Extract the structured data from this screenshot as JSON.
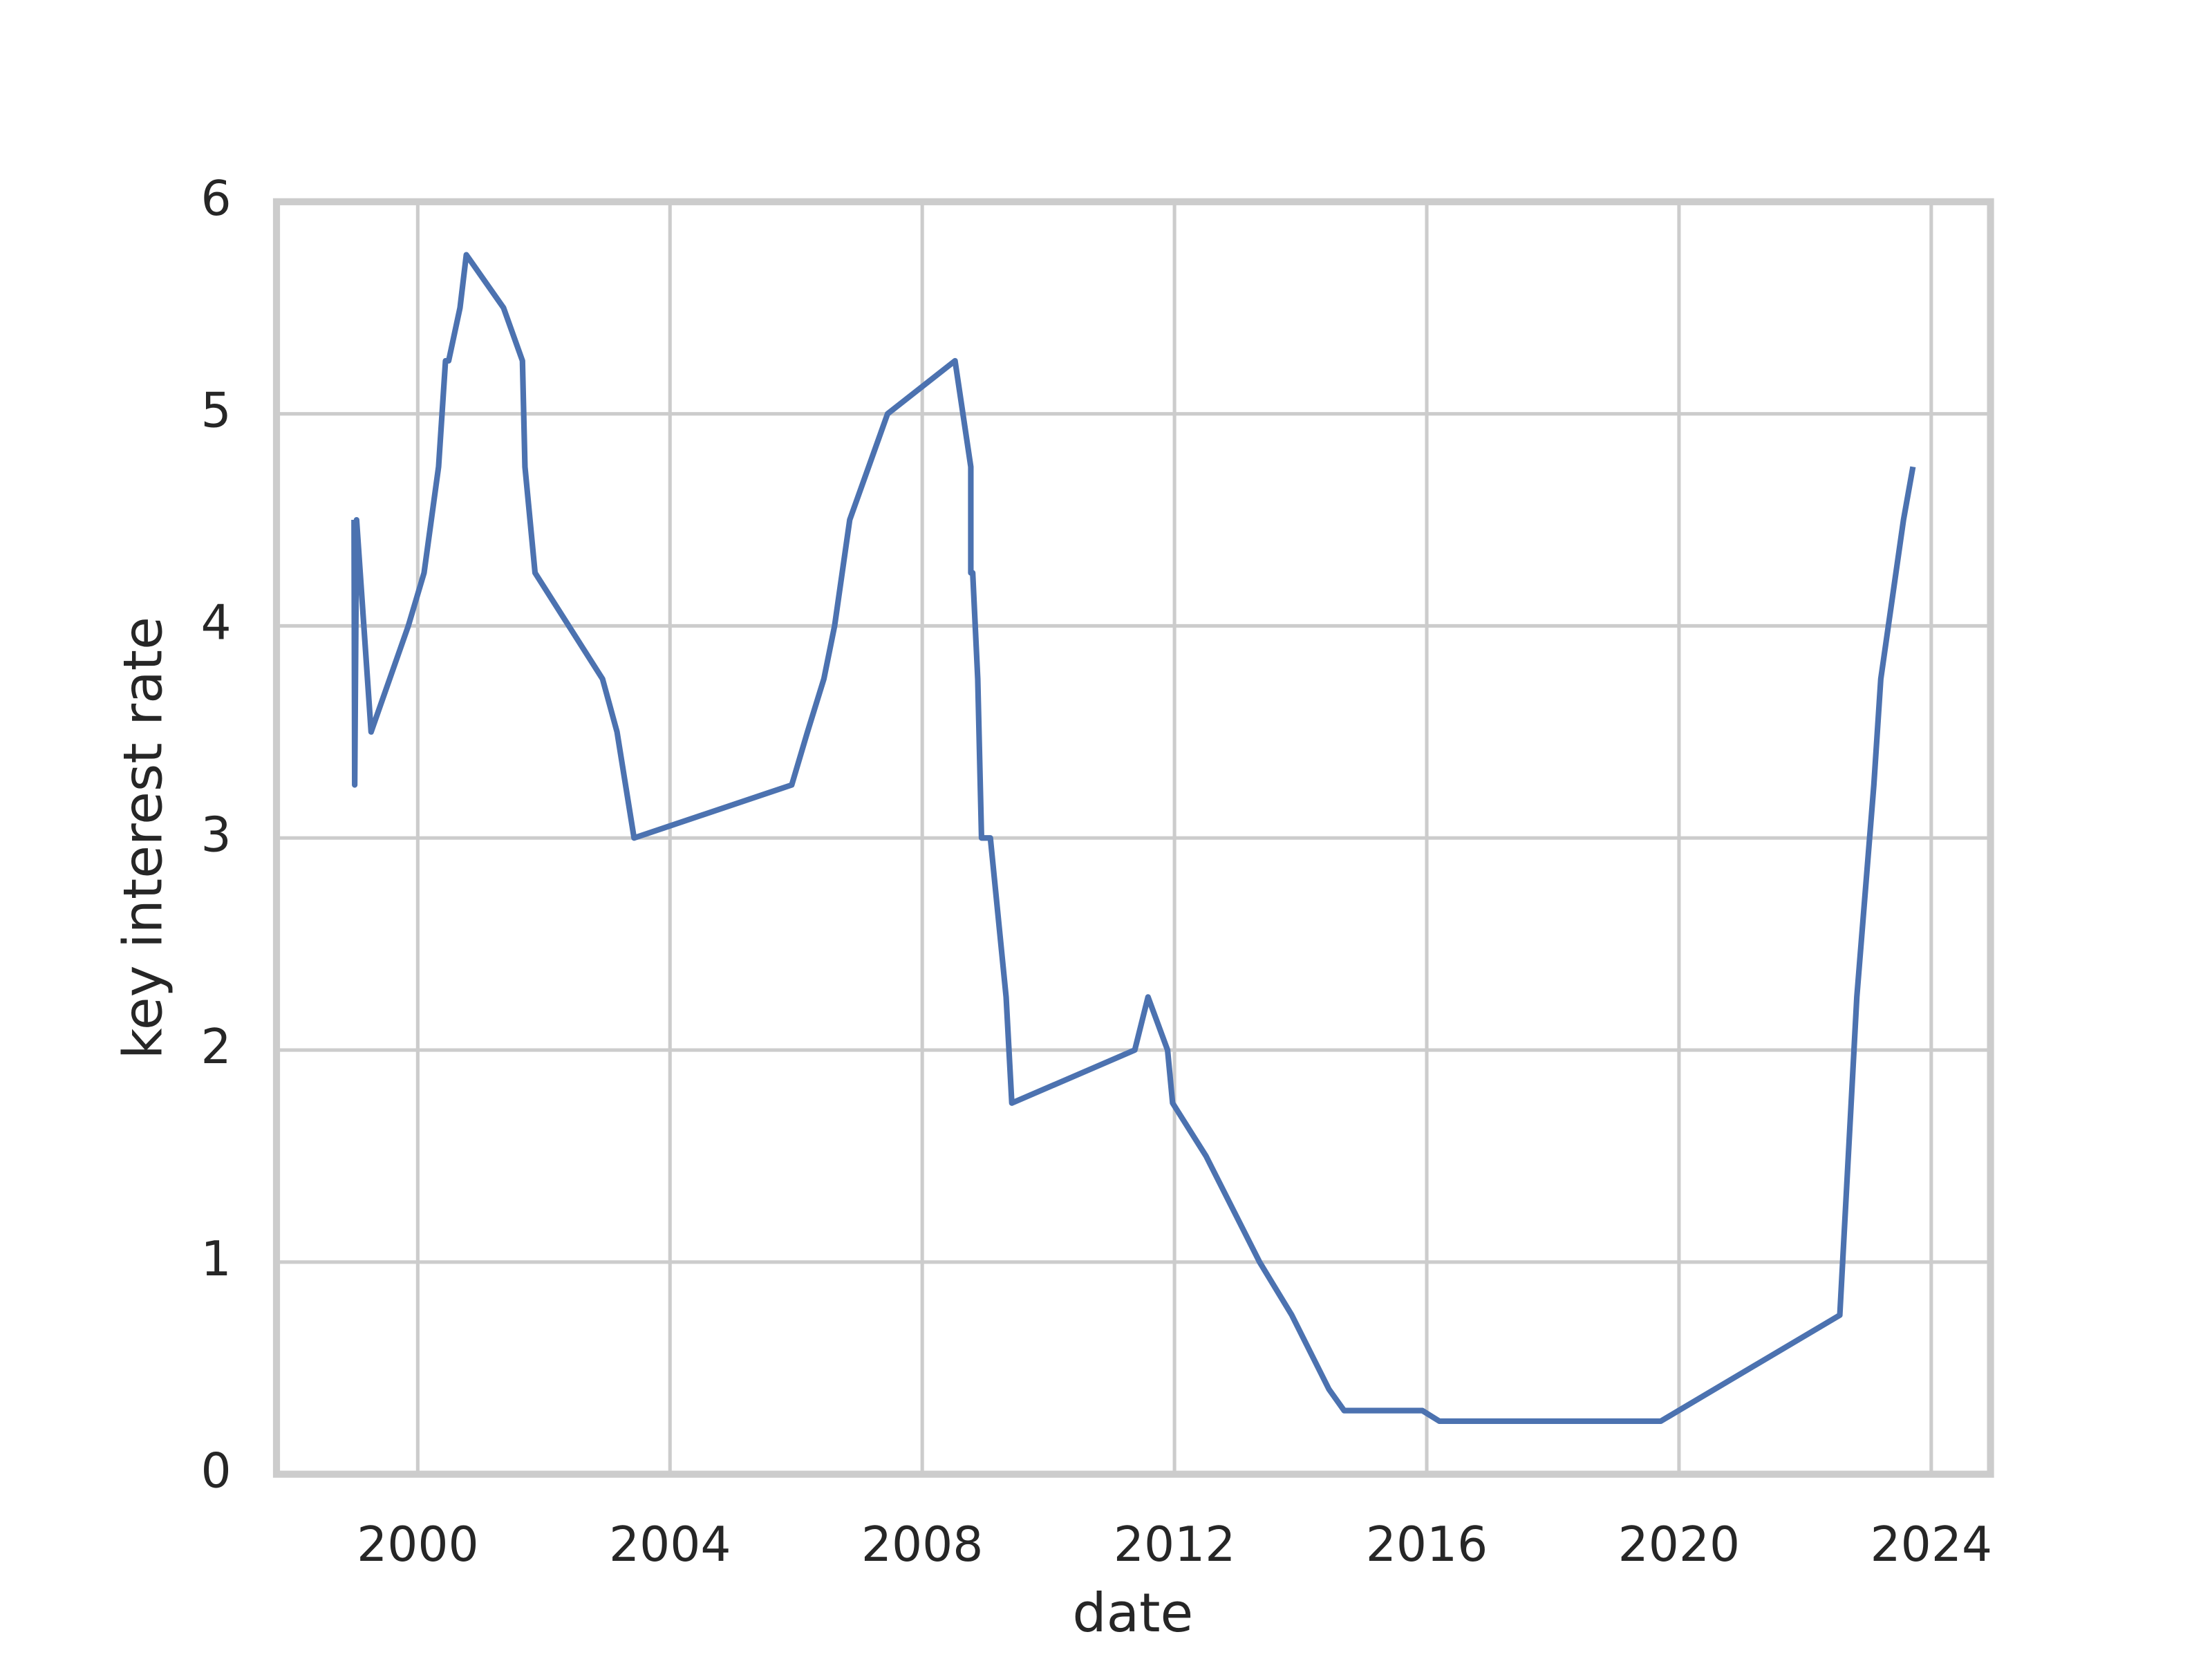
{
  "chart_data": {
    "type": "line",
    "xlabel": "date",
    "ylabel": "key interest rate",
    "x": [
      1998.99,
      1999.0,
      1999.03,
      1999.26,
      1999.85,
      2000.1,
      2000.33,
      2000.44,
      2000.49,
      2000.67,
      2000.77,
      2001.36,
      2001.66,
      2001.7,
      2001.86,
      2002.93,
      2003.16,
      2003.43,
      2005.93,
      2006.18,
      2006.44,
      2006.61,
      2006.85,
      2007.45,
      2008.52,
      2008.77,
      2008.77,
      2008.8,
      2008.88,
      2008.94,
      2009.08,
      2009.33,
      2009.42,
      2011.37,
      2011.58,
      2011.89,
      2011.97,
      2012.5,
      2013.35,
      2013.86,
      2014.45,
      2014.69,
      2015.93,
      2016.2,
      2019.71,
      2022.55,
      2022.82,
      2023.09,
      2023.2,
      2023.56,
      2023.71
    ],
    "series": [
      {
        "name": "key interest rate",
        "color": "#4c72b0",
        "values": [
          4.5,
          3.25,
          4.5,
          3.5,
          4.0,
          4.25,
          4.75,
          5.25,
          5.25,
          5.5,
          5.75,
          5.5,
          5.25,
          4.75,
          4.25,
          3.75,
          3.5,
          3.0,
          3.25,
          3.5,
          3.75,
          4.0,
          4.5,
          5.0,
          5.25,
          4.75,
          4.25,
          4.25,
          3.75,
          3.0,
          3.0,
          2.25,
          1.75,
          2.0,
          2.25,
          2.0,
          1.75,
          1.5,
          1.0,
          0.75,
          0.4,
          0.3,
          0.3,
          0.25,
          0.25,
          0.75,
          2.25,
          3.25,
          3.75,
          4.5,
          4.75
        ]
      }
    ],
    "xlim": [
      1997.76,
      2024.94
    ],
    "xticks": [
      2000,
      2004,
      2008,
      2012,
      2016,
      2020,
      2024
    ],
    "ylim": [
      0,
      6
    ],
    "yticks": [
      0,
      1,
      2,
      3,
      4,
      5,
      6
    ],
    "grid": true
  }
}
